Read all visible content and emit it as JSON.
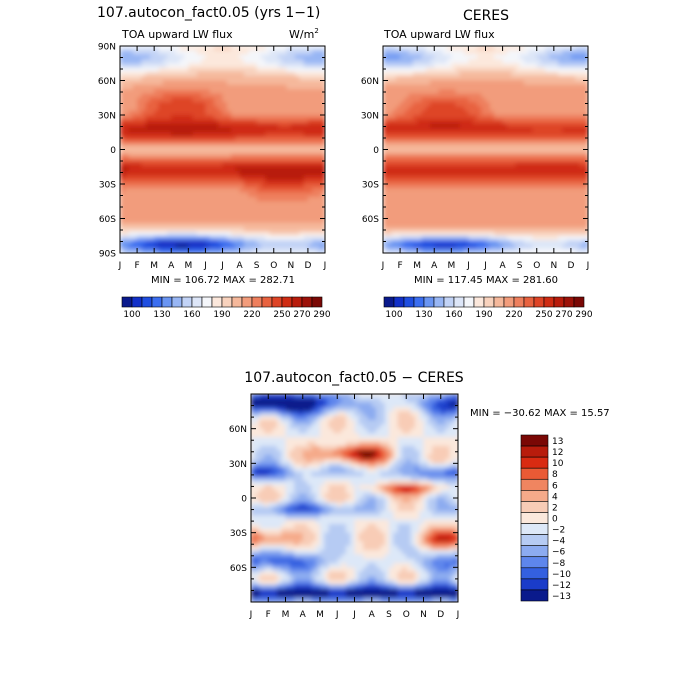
{
  "chart_data": [
    {
      "type": "heatmap",
      "title": "107.autocon_fact0.05 (yrs 1−1)",
      "subtitle_left": "TOA upward LW flux",
      "units": "W/m",
      "units_superscript": "2",
      "x_tick_labels": [
        "J",
        "F",
        "M",
        "A",
        "M",
        "J",
        "J",
        "A",
        "S",
        "O",
        "N",
        "D",
        "J"
      ],
      "y_tick_labels": [
        "90N",
        "60N",
        "30N",
        "0",
        "30S",
        "60S",
        "90S"
      ],
      "ylim": [
        -90,
        90
      ],
      "stats": "MIN = 106.72 MAX = 282.71",
      "colorbar_labels": [
        "100",
        "130",
        "160",
        "190",
        "220",
        "250",
        "270",
        "290"
      ],
      "colorbar_levels": [
        100,
        110,
        120,
        130,
        140,
        150,
        160,
        170,
        180,
        190,
        200,
        210,
        220,
        230,
        240,
        250,
        260,
        270,
        280,
        290
      ]
    },
    {
      "type": "heatmap",
      "title": "CERES",
      "subtitle_left": "TOA upward LW flux",
      "x_tick_labels": [
        "J",
        "F",
        "M",
        "A",
        "M",
        "J",
        "J",
        "A",
        "S",
        "O",
        "N",
        "D",
        "J"
      ],
      "y_tick_labels": [
        "60N",
        "30N",
        "0",
        "30S",
        "60S"
      ],
      "ylim": [
        -90,
        90
      ],
      "stats": "MIN = 117.45 MAX = 281.60",
      "colorbar_labels": [
        "100",
        "130",
        "160",
        "190",
        "220",
        "250",
        "270",
        "290"
      ],
      "colorbar_levels": [
        100,
        110,
        120,
        130,
        140,
        150,
        160,
        170,
        180,
        190,
        200,
        210,
        220,
        230,
        240,
        250,
        260,
        270,
        280,
        290
      ]
    },
    {
      "type": "heatmap",
      "title": "107.autocon_fact0.05 − CERES",
      "x_tick_labels": [
        "J",
        "F",
        "M",
        "A",
        "M",
        "J",
        "J",
        "A",
        "S",
        "O",
        "N",
        "D",
        "J"
      ],
      "y_tick_labels": [
        "60N",
        "30N",
        "0",
        "30S",
        "60S"
      ],
      "ylim": [
        -90,
        90
      ],
      "stats": "MIN = −30.62 MAX =  15.57",
      "colorbar_labels": [
        "13",
        "12",
        "10",
        "8",
        "6",
        "4",
        "2",
        "0",
        "−2",
        "−4",
        "−6",
        "−8",
        "−10",
        "−12",
        "−13"
      ]
    }
  ],
  "colors": {
    "seq": [
      "#0a1a8c",
      "#1230c8",
      "#1f4ee0",
      "#3b6ef0",
      "#6a95f2",
      "#98b6f4",
      "#c2d3f6",
      "#dde6f8",
      "#f4f6fa",
      "#fce8dc",
      "#f8d2bd",
      "#f5b89b",
      "#f29c7b",
      "#ee7f5d",
      "#e8623f",
      "#de4426",
      "#cf2c13",
      "#b81c0c",
      "#9c1209",
      "#7a0805"
    ],
    "div": [
      "#7a0805",
      "#b81c0c",
      "#d92b12",
      "#ea5a35",
      "#f08560",
      "#f5aa8a",
      "#f8ccb6",
      "#fbe8dc",
      "#dde8f8",
      "#b6cbf3",
      "#8cabf0",
      "#5e86ec",
      "#3460e0",
      "#1a3cc9",
      "#0a1a8c"
    ]
  }
}
